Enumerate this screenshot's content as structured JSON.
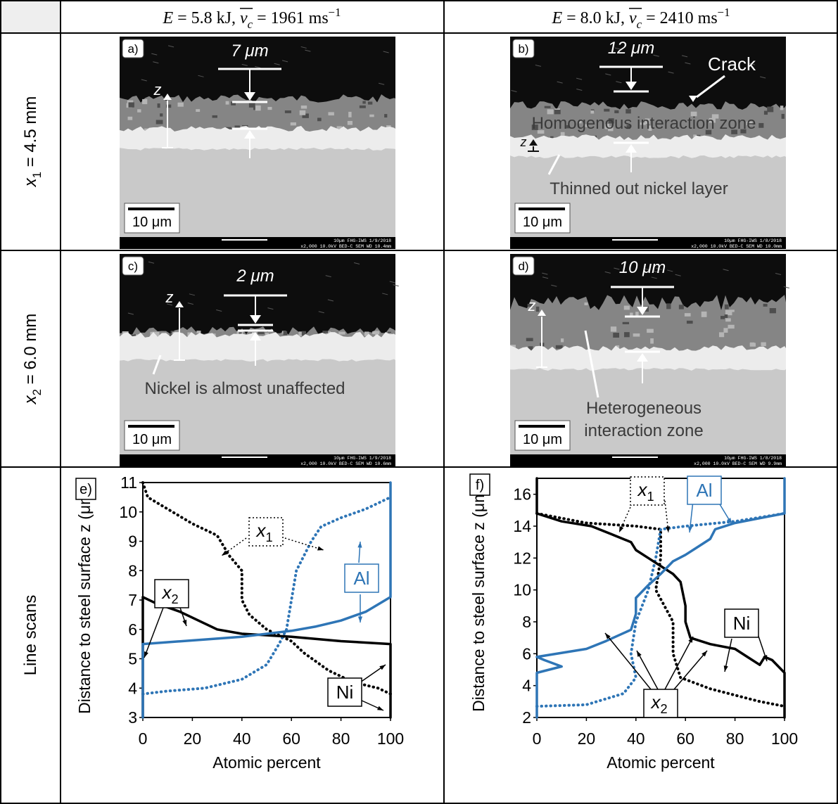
{
  "header": {
    "columns": [
      {
        "e": "E",
        "mid": " = 5.8 kJ, ",
        "v": "v",
        "sub": "c",
        "rest": " = 1961 ms",
        "sup": "−1"
      },
      {
        "e": "E",
        "mid": " = 8.0 kJ, ",
        "v": "v",
        "sub": "c",
        "rest": " = 2410 ms",
        "sup": "−1"
      }
    ]
  },
  "rows": [
    {
      "var": "x",
      "sub": "1",
      "rest": " = 4.5 mm"
    },
    {
      "var": "x",
      "sub": "2",
      "rest": " = 6.0 mm"
    },
    {
      "label": "Line scans"
    }
  ],
  "panels": [
    {
      "label": "a)",
      "thickness": "7 μm",
      "z": "z",
      "scale": "10 μm",
      "info_top": "10µm  FHG-IWS  1/9/2018",
      "info_bottom": "x2,000      10.0kV BED-C     SEM       WD 10.4mm",
      "notes": []
    },
    {
      "label": "b)",
      "thickness": "12 μm",
      "z": "z",
      "scale": "10 μm",
      "info_top": "10µm  FHG-IWS  1/8/2018",
      "info_bottom": "x2,000      10.0kV BED-C     SEM       WD 10.0mm",
      "notes": [
        "Crack",
        "Homogenous interaction zone",
        "Thinned out nickel layer"
      ]
    },
    {
      "label": "c)",
      "thickness": "2 μm",
      "z": "z",
      "scale": "10 μm",
      "info_top": "10µm  FHG-IWS  1/9/2018",
      "info_bottom": "x2,000      10.0kV BED-C     SEM       WD 10.6mm",
      "notes": [
        "Nickel is almost unaffected"
      ]
    },
    {
      "label": "d)",
      "thickness": "10 μm",
      "z": "z",
      "scale": "10 μm",
      "info_top": "10µm  FHG-IWS  1/8/2018",
      "info_bottom": "x2,000      10.0kV BED-C     SEM       WD 9.9mm",
      "notes": [
        "Heterogeneous",
        "interaction zone"
      ]
    }
  ],
  "chart_data": [
    {
      "type": "line",
      "label": "e)",
      "ylabel": "Distance to steel surface z (μm)",
      "xlabel": "Atomic percent",
      "xlim": [
        0,
        100
      ],
      "xticks": [
        0,
        20,
        40,
        60,
        80,
        100
      ],
      "ylim": [
        3,
        11
      ],
      "yticks": [
        3,
        4,
        5,
        6,
        7,
        8,
        9,
        10,
        11
      ],
      "annotations": [
        {
          "var": "x",
          "sub": "1"
        },
        {
          "var": "x",
          "sub": "2"
        },
        {
          "text": "Al"
        },
        {
          "text": "Ni"
        }
      ],
      "series": [
        {
          "color": "#000000",
          "style": "dotted",
          "x": [
            0,
            2,
            10,
            20,
            30,
            35,
            40,
            40,
            43,
            50,
            60,
            65,
            75,
            85,
            95,
            100
          ],
          "values": [
            11,
            10.5,
            10.1,
            9.6,
            9.2,
            8.5,
            8,
            7,
            6.5,
            6,
            5.6,
            5.2,
            4.6,
            4.2,
            4,
            3.8
          ]
        },
        {
          "color": "#2e75b6",
          "style": "dotted",
          "x": [
            0,
            10,
            25,
            40,
            50,
            55,
            58,
            60,
            62,
            68,
            72,
            80,
            90,
            100
          ],
          "values": [
            3.8,
            3.9,
            4,
            4.3,
            4.8,
            5.5,
            6,
            7,
            8,
            9,
            9.5,
            9.8,
            10.1,
            10.5
          ]
        },
        {
          "color": "#000000",
          "style": "solid",
          "x": [
            0,
            0,
            5,
            15,
            25,
            30,
            40,
            60,
            80,
            100,
            100
          ],
          "values": [
            3,
            7.1,
            6.9,
            6.6,
            6.2,
            6,
            5.85,
            5.75,
            5.6,
            5.5,
            3
          ]
        },
        {
          "color": "#2e75b6",
          "style": "solid",
          "x": [
            0,
            0,
            40,
            60,
            70,
            80,
            90,
            95,
            100,
            100
          ],
          "values": [
            3,
            5.5,
            5.75,
            5.95,
            6.1,
            6.3,
            6.6,
            6.85,
            7.1,
            11
          ]
        }
      ]
    },
    {
      "type": "line",
      "label": "f)",
      "ylabel": "Distance to steel surface z (μm)",
      "xlabel": "Atomic percent",
      "xlim": [
        0,
        100
      ],
      "xticks": [
        0,
        20,
        40,
        60,
        80,
        100
      ],
      "ylim": [
        2,
        17
      ],
      "yticks": [
        2,
        4,
        6,
        8,
        10,
        12,
        14,
        16
      ],
      "annotations": [
        {
          "var": "x",
          "sub": "1"
        },
        {
          "var": "x",
          "sub": "2"
        },
        {
          "text": "Al"
        },
        {
          "text": "Ni"
        }
      ],
      "series": [
        {
          "color": "#000000",
          "style": "dotted",
          "x": [
            0,
            20,
            40,
            50,
            50,
            48,
            55,
            55,
            58,
            70,
            90,
            100
          ],
          "values": [
            14.8,
            14.2,
            14,
            13.8,
            12,
            10,
            8,
            6,
            4.5,
            3.8,
            3,
            2.7
          ]
        },
        {
          "color": "#2e75b6",
          "style": "dotted",
          "x": [
            0,
            20,
            35,
            40,
            38,
            40,
            45,
            48,
            50,
            60,
            80,
            100
          ],
          "values": [
            2.7,
            2.8,
            3.5,
            4.5,
            6,
            8,
            10,
            12,
            13.8,
            14,
            14.3,
            14.8
          ]
        },
        {
          "color": "#000000",
          "style": "solid",
          "x": [
            100,
            100,
            95,
            92,
            90,
            85,
            80,
            70,
            62,
            60,
            60,
            58,
            55,
            50,
            45,
            40,
            38,
            30,
            22,
            10,
            0,
            0
          ],
          "values": [
            2,
            4.8,
            5.6,
            5.8,
            5.3,
            5.8,
            6.3,
            6.6,
            7,
            8,
            9,
            10.5,
            11,
            11.5,
            12,
            12.5,
            13,
            13.5,
            14,
            14.3,
            14.8,
            17
          ]
        },
        {
          "color": "#2e75b6",
          "style": "solid",
          "x": [
            0,
            0,
            10,
            3,
            0,
            20,
            28,
            38,
            40,
            40,
            45,
            50,
            55,
            60,
            65,
            70,
            72,
            80,
            90,
            100,
            100
          ],
          "values": [
            2,
            4.8,
            5.2,
            5.6,
            5.8,
            6.3,
            6.8,
            7.5,
            8.5,
            9.5,
            10.3,
            11,
            11.8,
            12.2,
            12.7,
            13.2,
            13.8,
            14.2,
            14.5,
            14.8,
            17
          ]
        }
      ]
    }
  ]
}
